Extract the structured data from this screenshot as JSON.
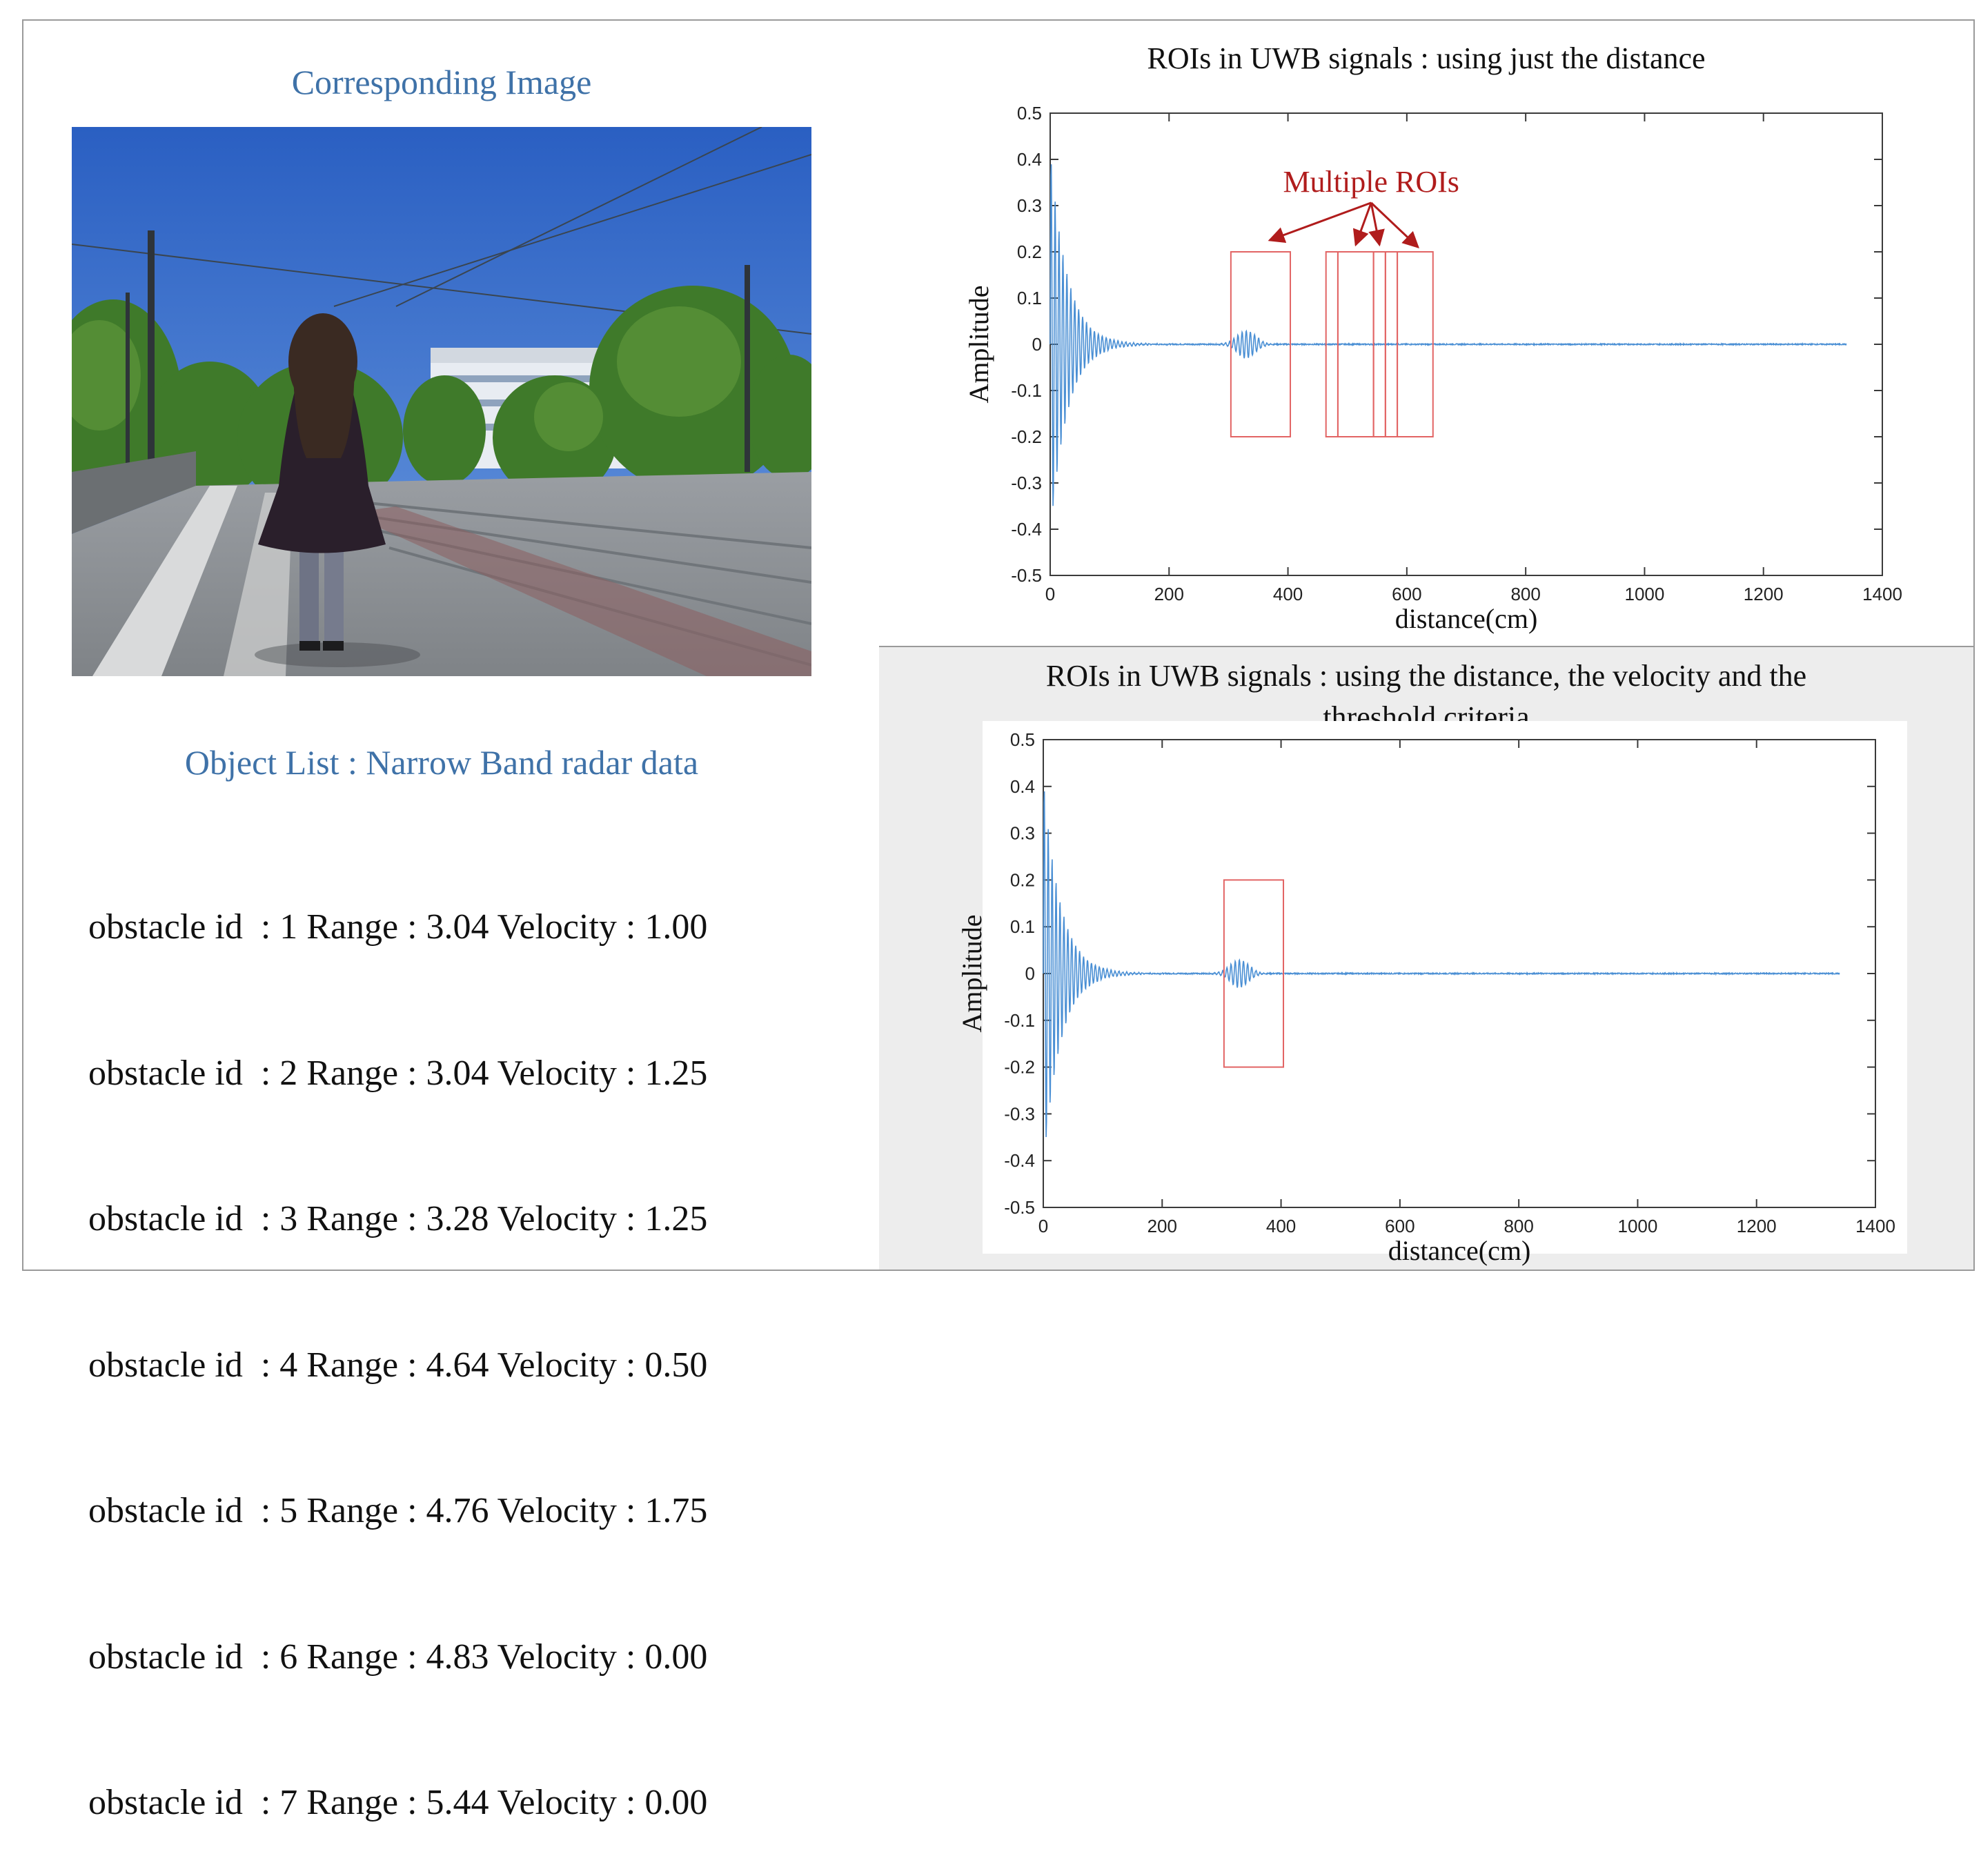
{
  "left": {
    "image_title": "Corresponding Image",
    "list_title": "Object List : Narrow Band radar data",
    "obstacles": [
      {
        "text": "obstacle id  : 1 Range : 3.04 Velocity : 1.00"
      },
      {
        "text": "obstacle id  : 2 Range : 3.04 Velocity : 1.25"
      },
      {
        "text": "obstacle id  : 3 Range : 3.28 Velocity : 1.25"
      },
      {
        "text": "obstacle id  : 4 Range : 4.64 Velocity : 0.50"
      },
      {
        "text": "obstacle id  : 5 Range : 4.76 Velocity : 1.75"
      },
      {
        "text": "obstacle id  : 6 Range : 4.83 Velocity : 0.00"
      },
      {
        "text": "obstacle id  : 7 Range : 5.44 Velocity : 0.00"
      }
    ]
  },
  "colors": {
    "signal": "#4a8fd4",
    "roi": "#e26464",
    "annotation": "#b01c1c",
    "title_blue": "#3f72a8"
  },
  "chart_data": [
    {
      "type": "line",
      "title": "ROIs in UWB signals : using just the distance",
      "xlabel": "distance(cm)",
      "ylabel": "Amplitude",
      "xlim": [
        0,
        1400
      ],
      "ylim": [
        -0.5,
        0.5
      ],
      "xticks": [
        0,
        200,
        400,
        600,
        800,
        1000,
        1200,
        1400
      ],
      "yticks": [
        0.5,
        0.4,
        0.3,
        0.2,
        0.1,
        0,
        -0.1,
        -0.2,
        -0.3,
        -0.4,
        -0.5
      ],
      "series": [
        {
          "signal": "decaying oscillation near 0 cm, small echo near 330 cm",
          "x_end": 1340
        }
      ],
      "rois": [
        {
          "x": [
            304,
            404
          ],
          "y": [
            -0.2,
            0.2
          ]
        },
        {
          "x": [
            464,
            484
          ],
          "y": [
            -0.2,
            0.2
          ]
        },
        {
          "x": [
            484,
            544
          ],
          "y": [
            -0.2,
            0.2
          ]
        },
        {
          "x": [
            544,
            564
          ],
          "y": [
            -0.2,
            0.2
          ]
        },
        {
          "x": [
            564,
            584
          ],
          "y": [
            -0.2,
            0.2
          ]
        },
        {
          "x": [
            584,
            644
          ],
          "y": [
            -0.2,
            0.2
          ]
        }
      ],
      "annotation": {
        "text": "Multiple ROIs",
        "x": 540,
        "y": 0.33
      }
    },
    {
      "type": "line",
      "title": "ROIs in UWB signals : using the distance, the velocity and the threshold criteria",
      "xlabel": "distance(cm)",
      "ylabel": "Amplitude",
      "xlim": [
        0,
        1400
      ],
      "ylim": [
        -0.5,
        0.5
      ],
      "xticks": [
        0,
        200,
        400,
        600,
        800,
        1000,
        1200,
        1400
      ],
      "yticks": [
        0.5,
        0.4,
        0.3,
        0.2,
        0.1,
        0,
        -0.1,
        -0.2,
        -0.3,
        -0.4,
        -0.5
      ],
      "series": [
        {
          "signal": "decaying oscillation near 0 cm, small echo near 330 cm",
          "x_end": 1340
        }
      ],
      "rois": [
        {
          "x": [
            304,
            404
          ],
          "y": [
            -0.2,
            0.2
          ]
        }
      ]
    }
  ]
}
